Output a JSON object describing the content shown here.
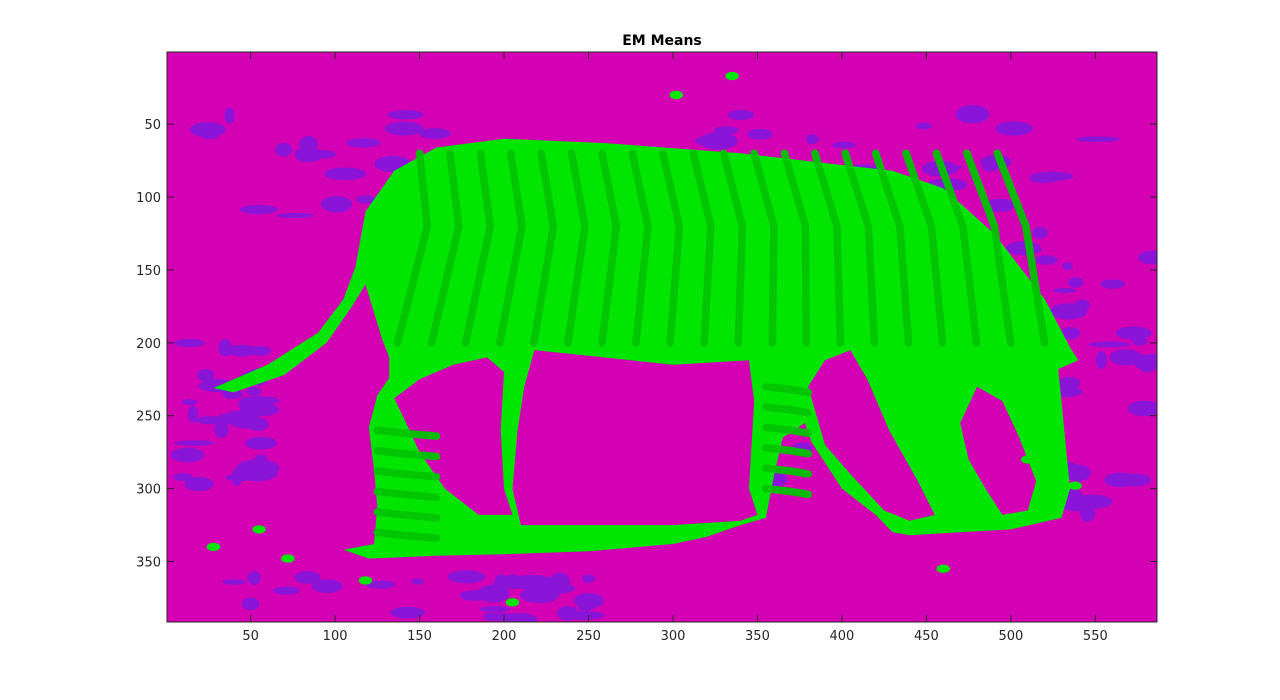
{
  "figure": {
    "background": "#ffffff",
    "title": "EM Means"
  },
  "chart_data": {
    "type": "heatmap",
    "title": "EM Means",
    "xlabel": "",
    "ylabel": "",
    "xlim": [
      0.5,
      586.5
    ],
    "ylim": [
      0.5,
      391.5
    ],
    "y_direction": "reversed",
    "grid": false,
    "x_ticks": [
      50,
      100,
      150,
      200,
      250,
      300,
      350,
      400,
      450,
      500,
      550
    ],
    "y_ticks": [
      50,
      100,
      150,
      200,
      250,
      300,
      350
    ],
    "colors": {
      "background_cluster": "#d400b4",
      "secondary_cluster": "#8a14d8",
      "zebra_light_cluster": "#00e600",
      "zebra_dark_cluster": "#00c400"
    },
    "clusters": [
      "background_cluster",
      "secondary_cluster",
      "zebra_light_cluster",
      "zebra_dark_cluster"
    ]
  }
}
